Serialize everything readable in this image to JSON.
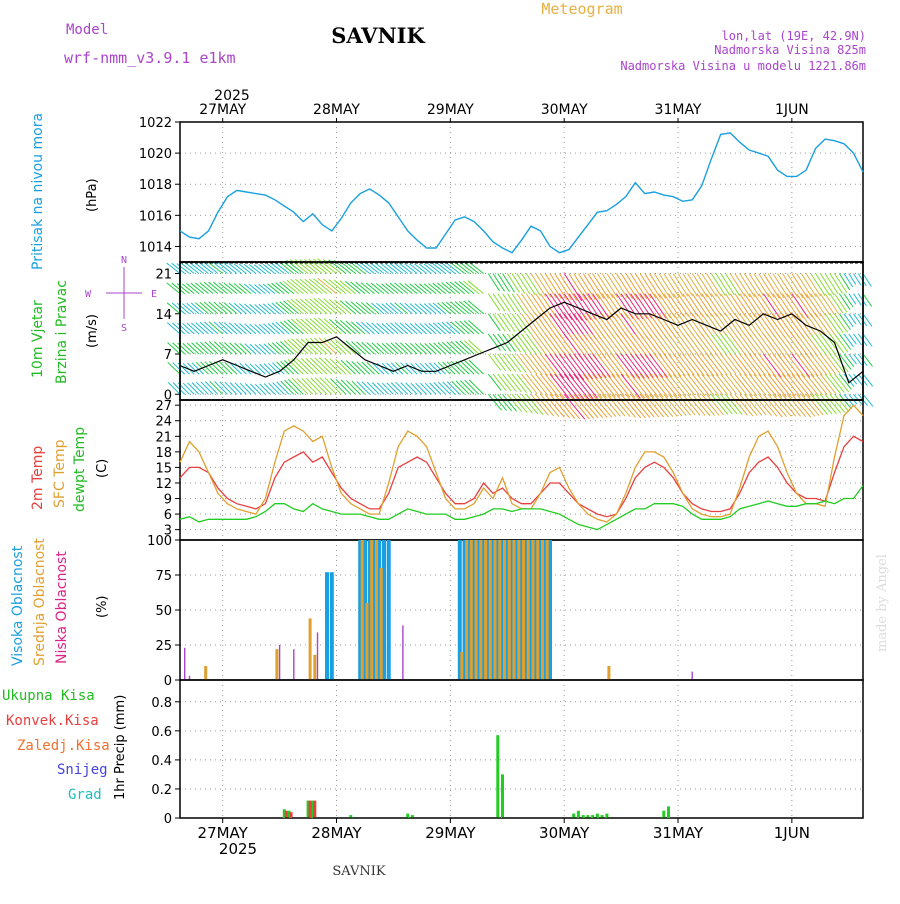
{
  "header": {
    "model_label": "Model",
    "model_name": "wrf-nmm_v3.9.1  e1km",
    "station": "SAVNIK",
    "product": "Meteogram",
    "lonlat": "lon,lat (19E, 42.9N)",
    "elevation": "Nadmorska Visina 825m",
    "model_elevation": "Nadmorska Visina u modelu 1221.86m",
    "year_top": "2025",
    "year_bottom": "2025",
    "footer_station": "SAVNIK",
    "credit": "made by Angel"
  },
  "colors": {
    "pressure": "#1aa0e0",
    "wind_label": "#22bb22",
    "temp2m": "#e84040",
    "sfc": "#e0a030",
    "dewpt": "#22cc22",
    "high_cloud": "#1aa0e0",
    "mid_cloud": "#e0a030",
    "low_cloud": "#dd2288",
    "purple": "#aa44cc",
    "total_precip": "#22cc22",
    "conv_precip": "#e84040",
    "frozen_precip": "#f07030",
    "snow": "#4444dd",
    "graupel": "#22bbbb"
  },
  "chart_data": [
    {
      "type": "line",
      "title": "",
      "ylabel": "Pritisak na nivou mora",
      "unit": "(hPa)",
      "ylim": [
        1013,
        1022
      ],
      "yticks": [
        1014,
        1016,
        1018,
        1020,
        1022
      ],
      "x_dates": [
        "27MAY",
        "28MAY",
        "29MAY",
        "30MAY",
        "31MAY",
        "1JUN"
      ],
      "series": [
        {
          "x": [
            0,
            2,
            4,
            6,
            8,
            10,
            12,
            14,
            16,
            18,
            20,
            22,
            24,
            26,
            28,
            30,
            32,
            34,
            36,
            38,
            40,
            42,
            44,
            46,
            48,
            50,
            52,
            54,
            56,
            58,
            60,
            62,
            64,
            66,
            68,
            70,
            72,
            74,
            76,
            78,
            80,
            82,
            84,
            86,
            88,
            90,
            92,
            94,
            96,
            98,
            100,
            102,
            104,
            106,
            108,
            110,
            112,
            114,
            116,
            118,
            120,
            122,
            124,
            126,
            128,
            130,
            132,
            134,
            136,
            138,
            140,
            142,
            144
          ],
          "y": [
            1015.0,
            1014.6,
            1014.5,
            1015.0,
            1016.2,
            1017.2,
            1017.6,
            1017.5,
            1017.4,
            1017.3,
            1017.0,
            1016.6,
            1016.2,
            1015.6,
            1016.1,
            1015.4,
            1015.0,
            1015.8,
            1016.8,
            1017.4,
            1017.7,
            1017.3,
            1016.8,
            1015.9,
            1015.0,
            1014.4,
            1013.9,
            1013.9,
            1014.8,
            1015.7,
            1015.9,
            1015.6,
            1015.0,
            1014.3,
            1013.9,
            1013.6,
            1014.4,
            1015.3,
            1015.0,
            1014.0,
            1013.6,
            1013.8,
            1014.6,
            1015.4,
            1016.2,
            1016.3,
            1016.7,
            1017.2,
            1018.1,
            1017.4,
            1017.5,
            1017.3,
            1017.2,
            1016.9,
            1017.0,
            1017.9,
            1019.6,
            1021.2,
            1021.3,
            1020.7,
            1020.2,
            1020.0,
            1019.8,
            1018.9,
            1018.5,
            1018.5,
            1018.9,
            1020.3,
            1020.9,
            1020.8,
            1020.6,
            1020.0,
            1018.8
          ]
        }
      ]
    },
    {
      "type": "line",
      "title": "",
      "ylabel_lines": [
        "10m Vjetar",
        "Brzina i Pravac"
      ],
      "unit": "(m/s)",
      "ylim": [
        -1,
        23
      ],
      "yticks": [
        0,
        7,
        14,
        21
      ],
      "compass": [
        "N",
        "E",
        "S",
        "W"
      ],
      "series": [
        {
          "name": "speed",
          "x": [
            0,
            3,
            6,
            9,
            12,
            15,
            18,
            21,
            24,
            27,
            30,
            33,
            36,
            39,
            42,
            45,
            48,
            51,
            54,
            57,
            60,
            63,
            66,
            69,
            72,
            75,
            78,
            81,
            84,
            87,
            90,
            93,
            96,
            99,
            102,
            105,
            108,
            111,
            114,
            117,
            120,
            123,
            126,
            129,
            132,
            135,
            138,
            141,
            144
          ],
          "y": [
            5,
            4,
            5,
            6,
            5,
            4,
            3,
            4,
            6,
            9,
            9,
            10,
            8,
            6,
            5,
            4,
            5,
            4,
            4,
            5,
            6,
            7,
            8,
            9,
            11,
            13,
            15,
            16,
            15,
            14,
            13,
            15,
            14,
            14,
            13,
            12,
            13,
            12,
            11,
            13,
            12,
            14,
            13,
            14,
            12,
            11,
            9,
            2,
            4
          ]
        }
      ]
    },
    {
      "type": "line",
      "title": "",
      "ylabel_lines": [
        "2m Temp",
        "SFC Temp",
        "dewpt Temp"
      ],
      "unit": "(C)",
      "ylim": [
        1,
        28
      ],
      "yticks": [
        3,
        6,
        9,
        12,
        15,
        18,
        21,
        24,
        27
      ],
      "series": [
        {
          "name": "2m Temp",
          "x": [
            0,
            2,
            4,
            6,
            8,
            10,
            12,
            14,
            16,
            18,
            20,
            22,
            24,
            26,
            28,
            30,
            32,
            34,
            36,
            38,
            40,
            42,
            44,
            46,
            48,
            50,
            52,
            54,
            56,
            58,
            60,
            62,
            64,
            66,
            68,
            70,
            72,
            74,
            76,
            78,
            80,
            82,
            84,
            86,
            88,
            90,
            92,
            94,
            96,
            98,
            100,
            102,
            104,
            106,
            108,
            110,
            112,
            114,
            116,
            118,
            120,
            122,
            124,
            126,
            128,
            130,
            132,
            134,
            136,
            138,
            140,
            142,
            144
          ],
          "y": [
            13,
            15,
            15,
            14,
            11,
            9,
            8,
            7.5,
            7,
            8,
            13,
            16,
            17,
            18,
            16,
            17,
            14,
            11,
            9,
            8,
            7,
            7,
            10,
            15,
            16,
            17,
            16,
            13,
            10,
            8,
            8,
            9,
            12,
            10,
            11,
            9,
            8,
            8,
            10,
            12,
            12,
            10,
            8,
            7,
            6,
            5.5,
            6,
            9,
            13,
            15,
            16,
            15,
            13,
            10,
            8,
            7,
            6.5,
            6.5,
            7,
            10,
            14,
            16,
            17,
            15,
            12,
            10,
            9,
            9,
            8.5,
            14,
            19,
            21,
            20
          ]
        },
        {
          "name": "SFC Temp",
          "x": [
            0,
            2,
            4,
            6,
            8,
            10,
            12,
            14,
            16,
            18,
            20,
            22,
            24,
            26,
            28,
            30,
            32,
            34,
            36,
            38,
            40,
            42,
            44,
            46,
            48,
            50,
            52,
            54,
            56,
            58,
            60,
            62,
            64,
            66,
            68,
            70,
            72,
            74,
            76,
            78,
            80,
            82,
            84,
            86,
            88,
            90,
            92,
            94,
            96,
            98,
            100,
            102,
            104,
            106,
            108,
            110,
            112,
            114,
            116,
            118,
            120,
            122,
            124,
            126,
            128,
            130,
            132,
            134,
            136,
            138,
            140,
            142,
            144
          ],
          "y": [
            16,
            20,
            18,
            14,
            10,
            8,
            7,
            6.5,
            6,
            9,
            16,
            22,
            23,
            22,
            20,
            21,
            15,
            10,
            8,
            7,
            6,
            6,
            12,
            19,
            22,
            21,
            19,
            14,
            9,
            7,
            7,
            8,
            11,
            9,
            13,
            8,
            7,
            7,
            10,
            14,
            15,
            11,
            8,
            6,
            5,
            4.5,
            6,
            10,
            15,
            18,
            18,
            17,
            14,
            10,
            7,
            6,
            5.5,
            5.5,
            6,
            11,
            17,
            21,
            22,
            19,
            14,
            10,
            8,
            8,
            7.5,
            17,
            25,
            27,
            25
          ]
        },
        {
          "name": "dewpt Temp",
          "x": [
            0,
            2,
            4,
            6,
            8,
            10,
            12,
            14,
            16,
            18,
            20,
            22,
            24,
            26,
            28,
            30,
            32,
            34,
            36,
            38,
            40,
            42,
            44,
            46,
            48,
            50,
            52,
            54,
            56,
            58,
            60,
            62,
            64,
            66,
            68,
            70,
            72,
            74,
            76,
            78,
            80,
            82,
            84,
            86,
            88,
            90,
            92,
            94,
            96,
            98,
            100,
            102,
            104,
            106,
            108,
            110,
            112,
            114,
            116,
            118,
            120,
            122,
            124,
            126,
            128,
            130,
            132,
            134,
            136,
            138,
            140,
            142,
            144
          ],
          "y": [
            5,
            5.5,
            4.5,
            5,
            5,
            5,
            5,
            5,
            5.5,
            6.5,
            8,
            8,
            7,
            6.5,
            8,
            7,
            6.5,
            6,
            6,
            6,
            5.5,
            5,
            5,
            6,
            7,
            6.5,
            6,
            6,
            6,
            5,
            5,
            5.5,
            6,
            7,
            7,
            6.5,
            7,
            7,
            7,
            6.5,
            6,
            5,
            4,
            3.5,
            3,
            4,
            5,
            6,
            7,
            7,
            8,
            8,
            8,
            7.5,
            6,
            5,
            5,
            5,
            5.5,
            7,
            7.5,
            8,
            8.5,
            8,
            7.5,
            7.5,
            8,
            8,
            8.5,
            8,
            9,
            9,
            11.5
          ]
        }
      ]
    },
    {
      "type": "bar",
      "title": "",
      "ylabel_lines": [
        "Visoka Oblacnost",
        "Srednja Oblacnost",
        "Niska Oblacnost"
      ],
      "unit": "(%)",
      "ylim": [
        0,
        100
      ],
      "yticks": [
        0,
        25,
        50,
        75,
        100
      ],
      "series": [
        {
          "name": "Visoka Oblacnost",
          "x": [
            31,
            32,
            38,
            39,
            40,
            41,
            42,
            43,
            44,
            59,
            60,
            61,
            62,
            63,
            64,
            65,
            66,
            67,
            68,
            69,
            70,
            71,
            72,
            73,
            74,
            75,
            76,
            77,
            78
          ],
          "values": [
            77,
            77,
            100,
            100,
            100,
            100,
            100,
            100,
            100,
            100,
            100,
            100,
            100,
            100,
            100,
            100,
            100,
            100,
            100,
            100,
            100,
            100,
            100,
            100,
            100,
            100,
            100,
            100,
            100
          ]
        },
        {
          "name": "Srednja Oblacnost",
          "x": [
            5,
            20,
            27,
            28,
            38,
            39,
            40,
            41,
            42,
            59,
            60,
            61,
            62,
            63,
            64,
            65,
            66,
            67,
            68,
            69,
            70,
            71,
            72,
            73,
            74,
            75,
            76,
            77,
            90
          ],
          "values": [
            10,
            22,
            44,
            18,
            100,
            55,
            100,
            100,
            80,
            20,
            100,
            100,
            100,
            100,
            100,
            100,
            100,
            100,
            100,
            100,
            100,
            100,
            100,
            100,
            100,
            100,
            100,
            100,
            10
          ]
        },
        {
          "name": "Niska Oblacnost",
          "x": [
            1,
            2,
            21,
            24,
            29,
            47,
            108
          ],
          "values": [
            23,
            3,
            25,
            22,
            34,
            39,
            6
          ]
        }
      ]
    },
    {
      "type": "bar",
      "title": "",
      "ylabel_lines": [
        "Ukupna Kisa",
        "Konvek.Kisa",
        "Zaledj.Kisa",
        "Snijeg",
        "Grad"
      ],
      "unit": "1hr Precip (mm)",
      "ylim": [
        0,
        0.95
      ],
      "yticks": [
        0,
        0.2,
        0.4,
        0.6,
        0.8
      ],
      "series": [
        {
          "name": "Ukupna Kisa",
          "x": [
            22,
            23,
            27,
            28,
            36,
            48,
            49,
            67,
            68,
            83,
            84,
            85,
            86,
            87,
            88,
            89,
            90,
            102,
            103
          ],
          "values": [
            0.06,
            0.05,
            0.12,
            0.12,
            0.02,
            0.03,
            0.02,
            0.57,
            0.3,
            0.03,
            0.05,
            0.02,
            0.02,
            0.02,
            0.03,
            0.02,
            0.03,
            0.05,
            0.08
          ]
        },
        {
          "name": "Konvek.Kisa",
          "x": [
            22,
            23,
            27,
            28
          ],
          "values": [
            0.05,
            0.04,
            0.12,
            0.12
          ]
        }
      ]
    }
  ]
}
